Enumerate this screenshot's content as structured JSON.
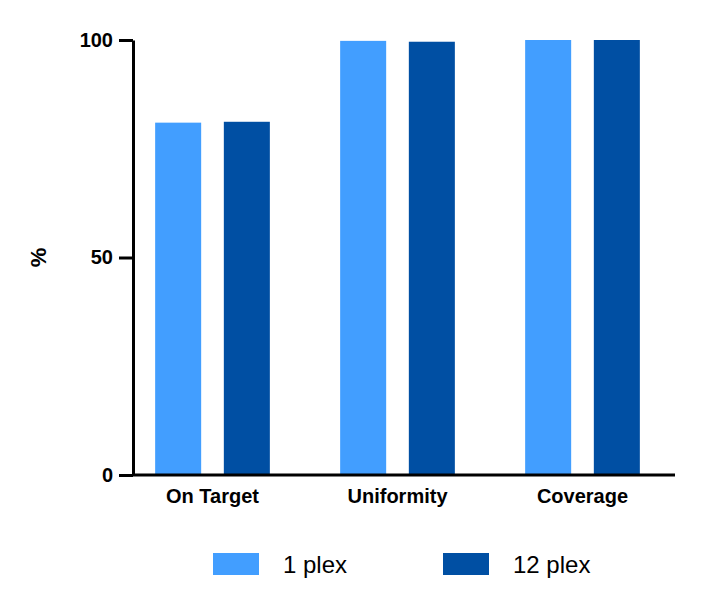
{
  "chart_data": {
    "type": "bar",
    "y_label": "%",
    "categories": [
      "On Target",
      "Uniformity",
      "Coverage"
    ],
    "series": [
      {
        "name": "1 plex",
        "color": "#429eff",
        "values": [
          81,
          99.8,
          100
        ]
      },
      {
        "name": "12 plex",
        "color": "#004fa3",
        "values": [
          81.2,
          99.6,
          100
        ]
      }
    ],
    "ylim": [
      0,
      100
    ],
    "yticks": [
      0,
      50,
      100
    ],
    "grid": false,
    "legend": "bottom"
  }
}
